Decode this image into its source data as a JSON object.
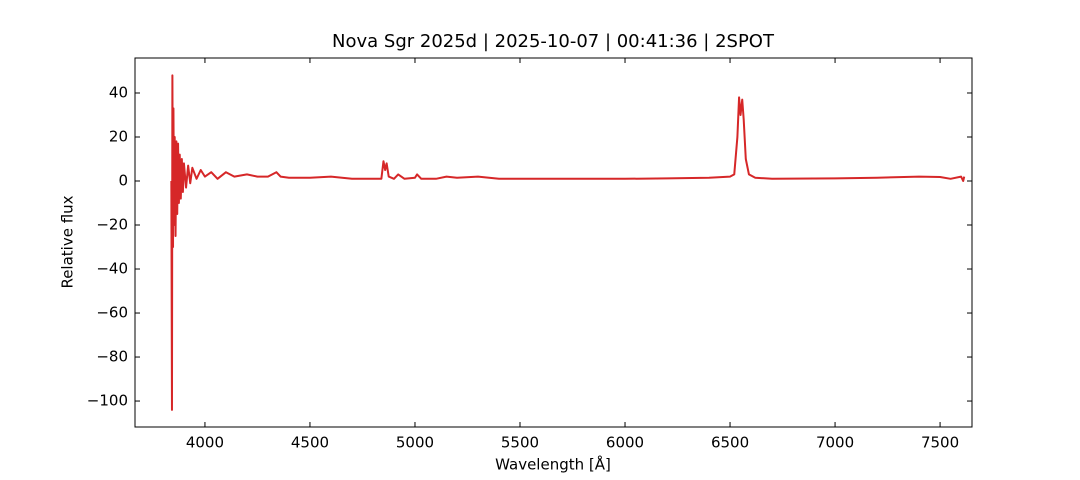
{
  "chart_data": {
    "type": "line",
    "title": "Nova Sgr 2025d | 2025-10-07 | 00:41:36 | 2SPOT",
    "x_label": "Wavelength [Å]",
    "y_label": "Relative flux",
    "x": [
      3840,
      3843,
      3845,
      3848,
      3850,
      3853,
      3856,
      3860,
      3864,
      3868,
      3872,
      3876,
      3880,
      3885,
      3890,
      3895,
      3900,
      3910,
      3920,
      3930,
      3940,
      3960,
      3980,
      4000,
      4030,
      4060,
      4100,
      4140,
      4200,
      4250,
      4300,
      4340,
      4360,
      4400,
      4500,
      4600,
      4700,
      4800,
      4840,
      4850,
      4858,
      4865,
      4875,
      4900,
      4920,
      4950,
      5000,
      5010,
      5030,
      5100,
      5150,
      5200,
      5300,
      5400,
      5500,
      5700,
      6000,
      6200,
      6400,
      6500,
      6520,
      6535,
      6543,
      6550,
      6558,
      6565,
      6575,
      6590,
      6620,
      6700,
      7000,
      7200,
      7400,
      7500,
      7550,
      7600,
      7610,
      7615
    ],
    "series": [
      {
        "name": "Relative flux",
        "color": "#d62728",
        "values": [
          0,
          -104,
          48,
          -30,
          33,
          -20,
          20,
          -25,
          18,
          -15,
          17,
          -10,
          12,
          -8,
          10,
          -5,
          8,
          -3,
          7,
          -1,
          6,
          1,
          5,
          2,
          4,
          1,
          4,
          2,
          3,
          2,
          2,
          4,
          2,
          1.5,
          1.5,
          2,
          1,
          1,
          1,
          9,
          5,
          8,
          2,
          1,
          3,
          1,
          1.5,
          3,
          1,
          1,
          2,
          1.5,
          2,
          1,
          1,
          1,
          1,
          1.2,
          1.5,
          2,
          3,
          20,
          38,
          30,
          37,
          28,
          10,
          3,
          1.5,
          1,
          1.2,
          1.5,
          2,
          1.8,
          1,
          2,
          0,
          2
        ]
      }
    ],
    "xlim": [
      3667,
      7652
    ],
    "ylim": [
      -111.8,
      55.9
    ],
    "xticks": [
      4000,
      4500,
      5000,
      5500,
      6000,
      6500,
      7000,
      7500
    ],
    "yticks": [
      {
        "value": -100,
        "label": "−100"
      },
      {
        "value": -80,
        "label": "−80"
      },
      {
        "value": -60,
        "label": "−60"
      },
      {
        "value": -40,
        "label": "−40"
      },
      {
        "value": -20,
        "label": "−20"
      },
      0,
      20,
      40
    ]
  }
}
